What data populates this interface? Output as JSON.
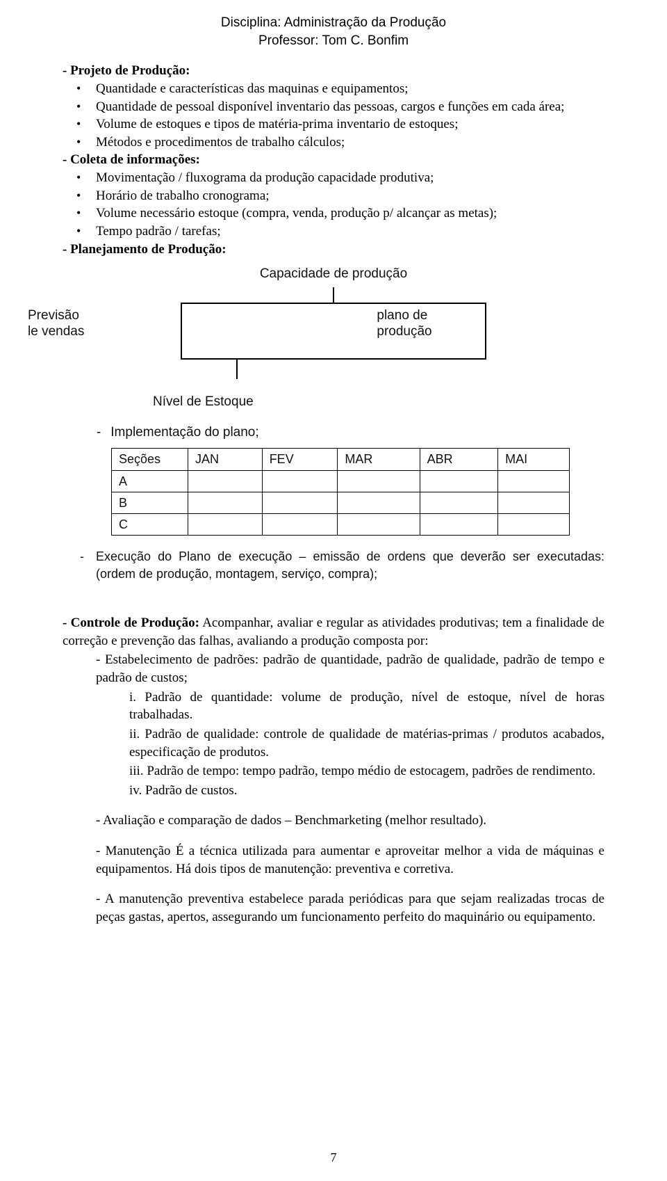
{
  "header": {
    "line1": "Disciplina: Administração da Produção",
    "line2": "Professor: Tom C. Bonfim"
  },
  "sections": {
    "projeto_title": "- Projeto de Produção:",
    "projeto_bullets": [
      "Quantidade e características das maquinas e equipamentos;",
      "Quantidade de pessoal disponível inventario das pessoas, cargos e funções em cada área;",
      "Volume de estoques e tipos de matéria-prima inventario de estoques;",
      "Métodos e procedimentos de trabalho cálculos;"
    ],
    "coleta_title": "- Coleta de informações:",
    "coleta_bullets": [
      "Movimentação / fluxograma da produção capacidade produtiva;",
      "Horário de trabalho cronograma;",
      "Volume necessário estoque (compra, venda, produção p/ alcançar as metas);",
      "Tempo padrão / tarefas;"
    ],
    "planejamento_title": "- Planejamento de Produção:"
  },
  "diagram": {
    "top_label": "Capacidade de produção",
    "left_label_l1": "Previsão",
    "left_label_l2": "le vendas",
    "right_label_l1": "plano de",
    "right_label_l2": "produção",
    "bottom_label": "Nível de Estoque",
    "impl_label": "Implementação do plano;",
    "table": {
      "columns": [
        "Seções",
        "JAN",
        "FEV",
        "MAR",
        "ABR",
        "MAI"
      ],
      "rows": [
        [
          "A",
          "",
          "",
          "",
          "",
          ""
        ],
        [
          "B",
          "",
          "",
          "",
          "",
          ""
        ],
        [
          "C",
          "",
          "",
          "",
          "",
          ""
        ]
      ]
    },
    "exec_line": "Execução do Plano de execução – emissão de ordens que deverão ser executadas: (ordem de produção, montagem, serviço, compra);"
  },
  "controle": {
    "lead": "- Controle de Produção:",
    "lead_rest": " Acompanhar, avaliar e regular as atividades produtivas; tem a finalidade de correção e prevenção das falhas, avaliando a produção composta por:",
    "est_padroes": "- Estabelecimento de padrões: padrão de quantidade, padrão de qualidade, padrão de tempo e padrão de custos;",
    "i": "i. Padrão de quantidade: volume de produção, nível de estoque, nível de horas trabalhadas.",
    "ii": "ii. Padrão de qualidade: controle de qualidade de matérias-primas / produtos acabados, especificação de produtos.",
    "iii": "iii. Padrão de tempo: tempo padrão, tempo médio de estocagem, padrões de rendimento.",
    "iv": "iv. Padrão de custos.",
    "aval": "- Avaliação e comparação de dados – Benchmarketing (melhor resultado).",
    "manut": "- Manutenção É a técnica utilizada para aumentar e aproveitar melhor a vida de máquinas e equipamentos. Há dois tipos de manutenção: preventiva e corretiva.",
    "manut_prev": "- A manutenção preventiva estabelece parada periódicas para que sejam realizadas trocas de peças gastas, apertos, assegurando um funcionamento perfeito do maquinário ou equipamento."
  },
  "page_number": "7"
}
